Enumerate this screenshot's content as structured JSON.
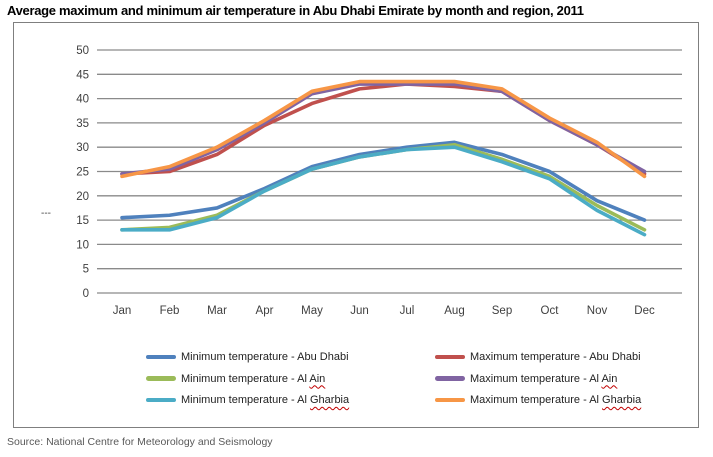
{
  "source_note": "Source: National Centre for Meteorology and Seismology",
  "chart_data": {
    "type": "line",
    "title": "Average maximum and minimum air temperature in Abu Dhabi Emirate by month and region, 2011",
    "categories": [
      "Jan",
      "Feb",
      "Mar",
      "Apr",
      "May",
      "Jun",
      "Jul",
      "Aug",
      "Sep",
      "Oct",
      "Nov",
      "Dec"
    ],
    "xlabel": "",
    "ylabel": "---",
    "ylim": [
      0,
      50
    ],
    "ytick_step": 5,
    "grid": true,
    "legend_position": "bottom-two-columns",
    "grid_color": "#8a8a8a",
    "series": [
      {
        "id": "min-abu-dhabi",
        "name": "Minimum temperature - Abu Dhabi",
        "color": "#4F81BD",
        "misspelled_word": null,
        "values": [
          15.5,
          16,
          17.5,
          21.5,
          26,
          28.5,
          30,
          31,
          28.5,
          25,
          19,
          15
        ]
      },
      {
        "id": "min-al-ain",
        "name": "Minimum temperature - Al Ain",
        "color": "#9BBB59",
        "misspelled_word": "Ain",
        "values": [
          13,
          13.5,
          16,
          21,
          25.5,
          28,
          29.5,
          30.5,
          27.5,
          24,
          18,
          13
        ]
      },
      {
        "id": "min-al-gharbia",
        "name": "Minimum temperature - Al Gharbia",
        "color": "#4BACC6",
        "misspelled_word": "Gharbia",
        "values": [
          13,
          13,
          15.5,
          21,
          25.5,
          28,
          29.5,
          30,
          27,
          23.5,
          17,
          12
        ]
      },
      {
        "id": "max-abu-dhabi",
        "name": "Maximum temperature - Abu Dhabi",
        "color": "#C0504D",
        "misspelled_word": null,
        "values": [
          24.5,
          25,
          28.5,
          34.5,
          39,
          42,
          43,
          42.5,
          41.5,
          35.5,
          30.5,
          24.5
        ]
      },
      {
        "id": "max-al-ain",
        "name": "Maximum temperature - Al Ain",
        "color": "#8064A2",
        "misspelled_word": "Ain",
        "values": [
          24.5,
          25.5,
          29.5,
          35,
          41,
          43,
          43,
          43,
          41.5,
          35.5,
          30.5,
          25
        ]
      },
      {
        "id": "max-al-gharbia",
        "name": "Maximum temperature - Al Gharbia",
        "color": "#F79646",
        "misspelled_word": "Gharbia",
        "values": [
          24,
          26,
          30,
          35.5,
          41.5,
          43.5,
          43.5,
          43.5,
          42,
          36,
          31,
          24
        ]
      }
    ]
  }
}
